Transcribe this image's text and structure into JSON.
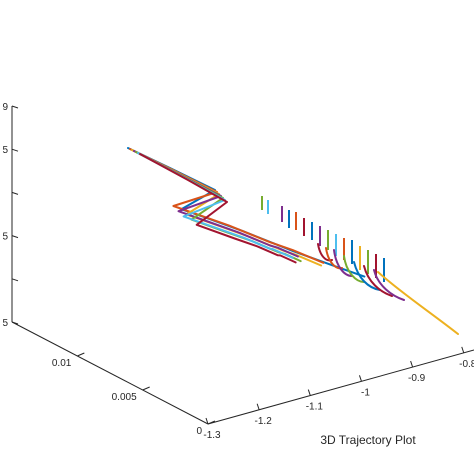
{
  "chart_data": {
    "type": "line",
    "projection": "3d",
    "xlabel": "",
    "ylabel": "",
    "zlabel": "",
    "caption": "3D Trajectory Plot",
    "x_tick_labels": [
      "-1.3",
      "-1.2",
      "-1.1",
      "-1",
      "-0.9",
      "-0.8"
    ],
    "y_tick_labels": [
      "0",
      "0.005",
      "0.01"
    ],
    "z_tick_labels": [
      "5",
      "",
      "5",
      "",
      "5",
      "9"
    ],
    "xlim": [
      -1.3,
      -0.78
    ],
    "ylim": [
      0,
      0.015
    ],
    "grid": false,
    "legend": "none",
    "colors": [
      "#0072BD",
      "#D95319",
      "#EDB120",
      "#7E2F8E",
      "#77AC30",
      "#4DBEEE",
      "#A2142F"
    ],
    "series": [
      {
        "x": [
          -1.25,
          -1.18,
          -1.08,
          -0.98,
          -0.88,
          -0.79
        ],
        "y": [
          0.004,
          0.005,
          0.006,
          0.006,
          0.007,
          0.008
        ]
      },
      {
        "x": [
          -1.24,
          -1.17,
          -1.08,
          -1.0,
          -0.93,
          -0.87
        ],
        "y": [
          0.005,
          0.006,
          0.007,
          0.007,
          0.008,
          0.008
        ]
      },
      {
        "x": [
          -1.24,
          -1.16,
          -1.07,
          -1.0,
          -0.95,
          -0.9
        ],
        "y": [
          0.004,
          0.005,
          0.006,
          0.006,
          0.007,
          0.007
        ]
      },
      {
        "x": [
          -1.23,
          -1.15,
          -1.06,
          -1.0,
          -0.96,
          -0.92
        ],
        "y": [
          0.005,
          0.006,
          0.007,
          0.007,
          0.008,
          0.008
        ]
      },
      {
        "x": [
          -1.23,
          -1.14,
          -1.06,
          -1.01,
          -0.97,
          -0.94
        ],
        "y": [
          0.004,
          0.005,
          0.006,
          0.006,
          0.007,
          0.007
        ]
      },
      {
        "x": [
          -1.22,
          -1.13,
          -1.05,
          -1.0,
          -0.97,
          -0.93
        ],
        "y": [
          0.005,
          0.006,
          0.007,
          0.007,
          0.008,
          0.008
        ]
      },
      {
        "x": [
          -1.22,
          -1.12,
          -1.05,
          -1.01,
          -0.98,
          -0.95
        ],
        "y": [
          0.004,
          0.005,
          0.006,
          0.006,
          0.007,
          0.007
        ]
      }
    ]
  }
}
